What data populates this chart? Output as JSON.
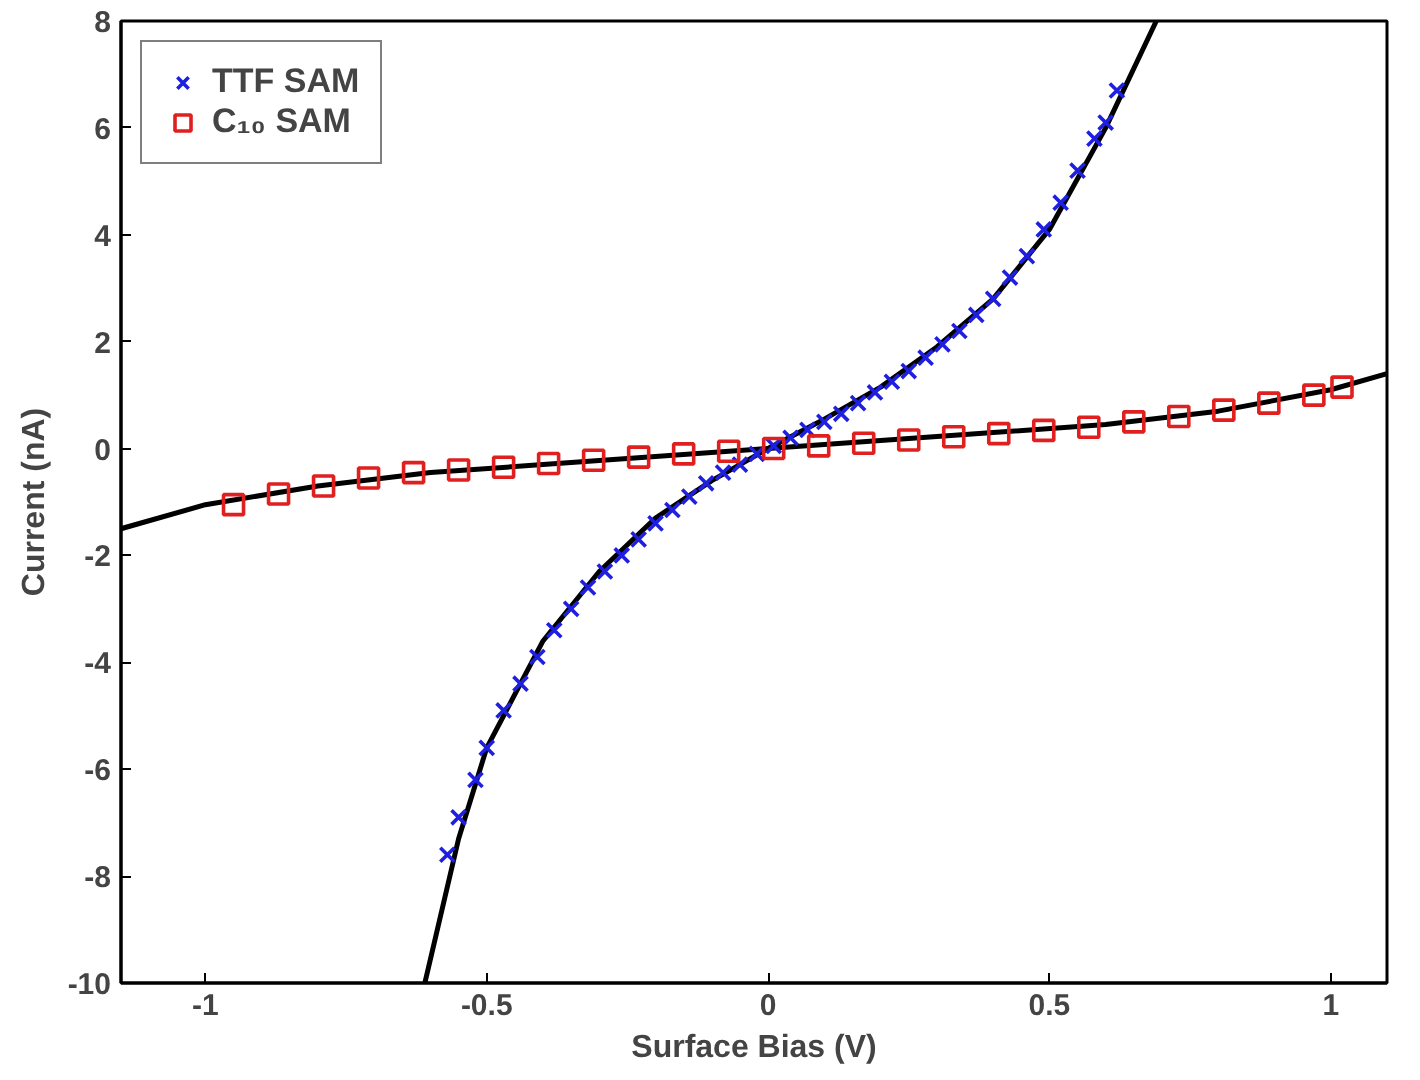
{
  "chart_data": {
    "type": "scatter",
    "xlabel": "Surface Bias (V)",
    "ylabel": "Current (nA)",
    "xlim": [
      -1.15,
      1.1
    ],
    "ylim": [
      -10,
      8
    ],
    "xticks": [
      -1,
      -0.5,
      0,
      0.5,
      1
    ],
    "yticks": [
      -10,
      -8,
      -6,
      -4,
      -2,
      0,
      2,
      4,
      6,
      8
    ],
    "grid": false,
    "legend": "top left",
    "series": [
      {
        "name": "TTF SAM",
        "color": "#1f1fe0",
        "marker": "cross",
        "x": [
          -0.57,
          -0.55,
          -0.52,
          -0.5,
          -0.47,
          -0.44,
          -0.41,
          -0.38,
          -0.35,
          -0.32,
          -0.29,
          -0.26,
          -0.23,
          -0.2,
          -0.17,
          -0.14,
          -0.11,
          -0.08,
          -0.05,
          -0.02,
          0.01,
          0.04,
          0.07,
          0.1,
          0.13,
          0.16,
          0.19,
          0.22,
          0.25,
          0.28,
          0.31,
          0.34,
          0.37,
          0.4,
          0.43,
          0.46,
          0.49,
          0.52,
          0.55,
          0.58,
          0.6,
          0.62
        ],
        "values": [
          -7.6,
          -6.9,
          -6.2,
          -5.6,
          -4.9,
          -4.4,
          -3.9,
          -3.4,
          -3.0,
          -2.6,
          -2.3,
          -2.0,
          -1.7,
          -1.4,
          -1.15,
          -0.9,
          -0.65,
          -0.45,
          -0.3,
          -0.1,
          0.05,
          0.2,
          0.35,
          0.5,
          0.65,
          0.85,
          1.05,
          1.25,
          1.45,
          1.7,
          1.95,
          2.2,
          2.5,
          2.8,
          3.2,
          3.6,
          4.1,
          4.6,
          5.2,
          5.8,
          6.1,
          6.7
        ]
      },
      {
        "name": "C₁₀ SAM",
        "color": "#e01f1f",
        "marker": "square",
        "x": [
          -0.95,
          -0.87,
          -0.79,
          -0.71,
          -0.63,
          -0.55,
          -0.47,
          -0.39,
          -0.31,
          -0.23,
          -0.15,
          -0.07,
          0.01,
          0.09,
          0.17,
          0.25,
          0.33,
          0.41,
          0.49,
          0.57,
          0.65,
          0.73,
          0.81,
          0.89,
          0.97,
          1.02
        ],
        "values": [
          -1.05,
          -0.85,
          -0.7,
          -0.55,
          -0.45,
          -0.4,
          -0.35,
          -0.28,
          -0.22,
          -0.16,
          -0.1,
          -0.05,
          0.0,
          0.05,
          0.1,
          0.16,
          0.22,
          0.28,
          0.34,
          0.4,
          0.5,
          0.6,
          0.72,
          0.85,
          1.0,
          1.15
        ]
      },
      {
        "type": "line",
        "color": "#000000",
        "x": [
          -0.61,
          -0.55,
          -0.5,
          -0.4,
          -0.3,
          -0.2,
          -0.1,
          0,
          0.1,
          0.2,
          0.3,
          0.4,
          0.5,
          0.6,
          0.69
        ],
        "values": [
          -10,
          -7.3,
          -5.6,
          -3.6,
          -2.3,
          -1.3,
          -0.6,
          0,
          0.55,
          1.15,
          1.9,
          2.8,
          4.1,
          6.0,
          8
        ]
      },
      {
        "type": "line",
        "color": "#000000",
        "x": [
          -1.15,
          -1.0,
          -0.8,
          -0.6,
          -0.4,
          -0.2,
          0,
          0.2,
          0.4,
          0.6,
          0.8,
          1.0,
          1.1
        ],
        "values": [
          -1.5,
          -1.05,
          -0.7,
          -0.45,
          -0.3,
          -0.15,
          0,
          0.15,
          0.3,
          0.45,
          0.7,
          1.1,
          1.4
        ]
      }
    ]
  }
}
